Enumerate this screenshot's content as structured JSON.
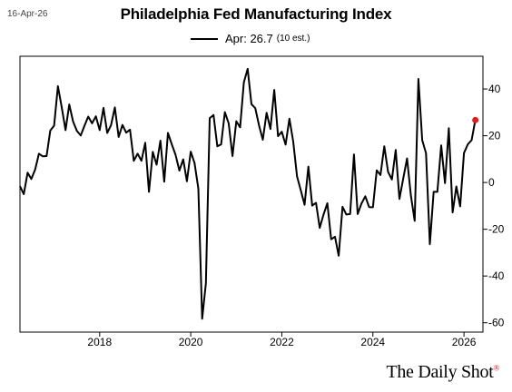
{
  "date_label": "16-Apr-26",
  "brand": "The Daily Shot",
  "brand_mark": "®",
  "colors": {
    "line": "#000000",
    "latest_point": "#e31a1c",
    "frame": "#000000",
    "brand_mark": "#d7191c"
  },
  "chart_data": {
    "type": "line",
    "title": "Philadelphia Fed Manufacturing Index",
    "legend": {
      "label": "Apr: 26.7",
      "note": "(10 est.)",
      "placement": "top-center"
    },
    "xlabel": "",
    "ylabel": "",
    "xlim": [
      "2016-04",
      "2026-06"
    ],
    "ylim": [
      -64,
      54
    ],
    "xticks": [
      "2018",
      "2020",
      "2022",
      "2024",
      "2026"
    ],
    "yticks": [
      40,
      20,
      0,
      -20,
      -40,
      -60
    ],
    "ytick_labels": [
      "40",
      "20",
      "0",
      "-20",
      "-40",
      "-60"
    ],
    "y_axis_side": "right",
    "grid": false,
    "series": [
      {
        "x": [
          "2016-04",
          "2016-05",
          "2016-06",
          "2016-07",
          "2016-08",
          "2016-09",
          "2016-10",
          "2016-11",
          "2016-12",
          "2017-01",
          "2017-02",
          "2017-03",
          "2017-04",
          "2017-05",
          "2017-06",
          "2017-07",
          "2017-08",
          "2017-09",
          "2017-10",
          "2017-11",
          "2017-12",
          "2018-01",
          "2018-02",
          "2018-03",
          "2018-04",
          "2018-05",
          "2018-06",
          "2018-07",
          "2018-08",
          "2018-09",
          "2018-10",
          "2018-11",
          "2018-12",
          "2019-01",
          "2019-02",
          "2019-03",
          "2019-04",
          "2019-05",
          "2019-06",
          "2019-07",
          "2019-08",
          "2019-09",
          "2019-10",
          "2019-11",
          "2019-12",
          "2020-01",
          "2020-02",
          "2020-03",
          "2020-04",
          "2020-05",
          "2020-06",
          "2020-07",
          "2020-08",
          "2020-09",
          "2020-10",
          "2020-11",
          "2020-12",
          "2021-01",
          "2021-02",
          "2021-03",
          "2021-04",
          "2021-05",
          "2021-06",
          "2021-07",
          "2021-08",
          "2021-09",
          "2021-10",
          "2021-11",
          "2021-12",
          "2022-01",
          "2022-02",
          "2022-03",
          "2022-04",
          "2022-05",
          "2022-06",
          "2022-07",
          "2022-08",
          "2022-09",
          "2022-10",
          "2022-11",
          "2022-12",
          "2023-01",
          "2023-02",
          "2023-03",
          "2023-04",
          "2023-05",
          "2023-06",
          "2023-07",
          "2023-08",
          "2023-09",
          "2023-10",
          "2023-11",
          "2023-12",
          "2024-01",
          "2024-02",
          "2024-03",
          "2024-04",
          "2024-05",
          "2024-06",
          "2024-07",
          "2024-08",
          "2024-09",
          "2024-10",
          "2024-11",
          "2024-12",
          "2025-01",
          "2025-02",
          "2025-03",
          "2025-04",
          "2025-05",
          "2025-06",
          "2025-07",
          "2025-08",
          "2025-09",
          "2025-10",
          "2025-11",
          "2025-12",
          "2026-01",
          "2026-02",
          "2026-03",
          "2026-04"
        ],
        "y": [
          -1.6,
          -5,
          4.2,
          1.5,
          5.5,
          12.3,
          11.2,
          11.3,
          22.2,
          24.3,
          41.2,
          32.2,
          22.4,
          33.4,
          26.1,
          22.1,
          20.1,
          24.3,
          28.2,
          25.3,
          28.3,
          22.4,
          31.9,
          21.2,
          24.5,
          32.1,
          19.5,
          24.6,
          21.3,
          22.6,
          9.3,
          12.3,
          9.3,
          17.0,
          -4.0,
          13.1,
          7.6,
          17.9,
          0.3,
          21.2,
          16.4,
          11.8,
          5.1,
          9.9,
          0.5,
          13.2,
          8.3,
          -2.6,
          -58.3,
          -43.1,
          27.5,
          28.9,
          15.5,
          16.3,
          30.1,
          25.3,
          11.3,
          26.2,
          23.6,
          42.8,
          48.6,
          33.5,
          31.8,
          24.3,
          18.3,
          29.8,
          22.9,
          39.6,
          19.8,
          21.7,
          16.2,
          27.3,
          17.5,
          2.6,
          -3.3,
          -9.5,
          6.8,
          -9.9,
          -8.7,
          -19.4,
          -13.7,
          -8.9,
          -24.3,
          -23.2,
          -31.3,
          -10.4,
          -13.7,
          -13.5,
          12.0,
          -13.5,
          -9.0,
          -5.9,
          -10.5,
          -10.6,
          5.2,
          3.2,
          15.5,
          4.5,
          1.3,
          13.9,
          -7.0,
          1.7,
          10.3,
          -5.5,
          -16.4,
          44.3,
          18.1,
          12.5,
          -26.4,
          -4.0,
          -4.0,
          15.9,
          -0.3,
          23.2,
          -12.8,
          -1.7,
          -10.2,
          12.6,
          16.3,
          18.1,
          26.7
        ],
        "highlight_last": true
      }
    ]
  }
}
